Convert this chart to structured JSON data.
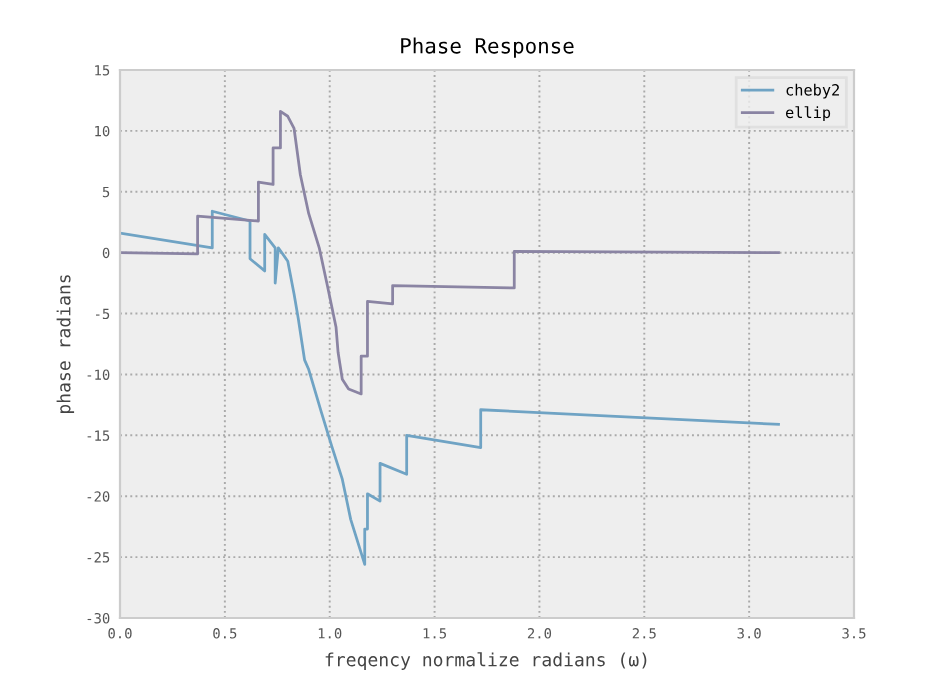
{
  "chart_data": {
    "type": "line",
    "title": "Phase Response",
    "xlabel": "freqency normalize radians (ω)",
    "ylabel": "phase radians",
    "xlim": [
      0.0,
      3.5
    ],
    "xticks": [
      {
        "value": 0,
        "label": "0.0"
      },
      {
        "value": 0.5,
        "label": "0.5"
      },
      {
        "value": 1,
        "label": "1.0"
      },
      {
        "value": 1.5,
        "label": "1.5"
      },
      {
        "value": 2,
        "label": "2.0"
      },
      {
        "value": 2.5,
        "label": "2.5"
      },
      {
        "value": 3,
        "label": "3.0"
      },
      {
        "value": 3.5,
        "label": "3.5"
      }
    ],
    "ylim": [
      -30,
      15
    ],
    "yticks": [
      -30,
      -25,
      -20,
      -15,
      -10,
      -5,
      0,
      5,
      10,
      15
    ],
    "grid": true,
    "legend": "top right",
    "marker": "none",
    "line_style": "solid",
    "series": [
      {
        "name": "cheby2",
        "color": "#6fa3c4",
        "x": [
          0,
          0.44,
          0.44,
          0.62,
          0.62,
          0.69,
          0.69,
          0.74,
          0.74,
          0.755,
          0.8,
          0.83,
          0.85,
          0.88,
          0.9,
          0.96,
          1.01,
          1.06,
          1.1,
          1.167,
          1.167,
          1.18,
          1.18,
          1.24,
          1.24,
          1.367,
          1.367,
          1.72,
          1.72,
          3.14
        ],
        "values": [
          1.6,
          0.4,
          3.4,
          2.6,
          -0.5,
          -1.5,
          1.5,
          0.4,
          -2.5,
          0.4,
          -0.7,
          -3.4,
          -5.4,
          -8.8,
          -9.6,
          -13.1,
          -15.9,
          -18.6,
          -21.9,
          -25.6,
          -22.7,
          -22.7,
          -19.8,
          -20.4,
          -17.3,
          -18.2,
          -15.0,
          -16.0,
          -12.9,
          -14.1
        ]
      },
      {
        "name": "ellip",
        "color": "#8a84a3",
        "x": [
          0,
          0.37,
          0.37,
          0.66,
          0.66,
          0.73,
          0.73,
          0.765,
          0.765,
          0.8,
          0.83,
          0.86,
          0.9,
          0.95,
          0.99,
          1.03,
          1.04,
          1.06,
          1.09,
          1.15,
          1.15,
          1.18,
          1.18,
          1.3,
          1.3,
          1.88,
          1.88,
          3.14
        ],
        "values": [
          0,
          -0.1,
          3.0,
          2.6,
          5.8,
          5.6,
          8.6,
          8.6,
          11.6,
          11.2,
          10.2,
          6.4,
          3.2,
          0.4,
          -2.8,
          -6.1,
          -8.2,
          -10.4,
          -11.2,
          -11.6,
          -8.5,
          -8.5,
          -4.0,
          -4.2,
          -2.7,
          -2.9,
          0.1,
          0
        ]
      }
    ]
  }
}
